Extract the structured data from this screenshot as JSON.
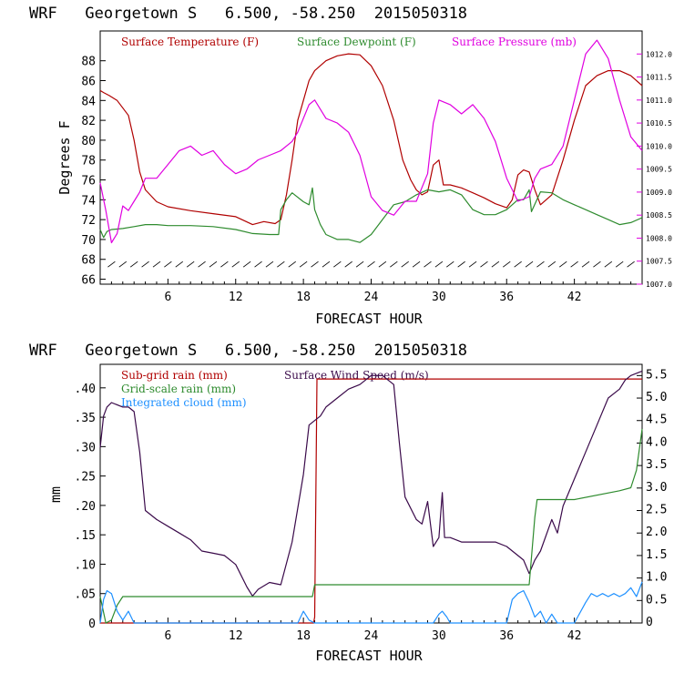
{
  "colors": {
    "temperature": "#b00000",
    "dewpoint": "#2e8b2e",
    "pressure": "#e000e0",
    "subgrid_rain": "#b00000",
    "gridscale_rain": "#2e8b2e",
    "cloud": "#1e90ff",
    "wind_speed": "#3a0a4a",
    "wind_barbs": "#000000"
  },
  "chart_data": [
    {
      "type": "line",
      "title": "WRF   Georgetown S   6.500, -58.250  2015050318",
      "xlabel": "FORECAST HOUR",
      "ylabel": "Degrees F",
      "xlim": [
        0,
        48
      ],
      "ylim": [
        65.5,
        91
      ],
      "y2lim": [
        1007.0,
        1012.5
      ],
      "x_ticks": [
        6,
        12,
        18,
        24,
        30,
        36,
        42
      ],
      "x_tick_labels": [
        "6",
        "12",
        "18",
        "24",
        "30",
        "36",
        "42"
      ],
      "y_ticks": [
        66,
        68,
        70,
        72,
        74,
        76,
        78,
        80,
        82,
        84,
        86,
        88
      ],
      "y_tick_labels": [
        "66",
        "68",
        "70",
        "72",
        "74",
        "76",
        "78",
        "80",
        "82",
        "84",
        "86",
        "88"
      ],
      "y2_ticks": [
        1007.0,
        1007.5,
        1008.0,
        1008.5,
        1009.0,
        1009.5,
        1010.0,
        1010.5,
        1011.0,
        1011.5,
        1012.0
      ],
      "y2_tick_labels": [
        "1007.0",
        "1007.5",
        "1008.0",
        "1008.5",
        "1009.0",
        "1009.5",
        "1010.0",
        "1010.5",
        "1011.0",
        "1011.5",
        "1012.0"
      ],
      "legend": [
        "Surface Temperature (F)",
        "Surface Dewpoint (F)",
        "Surface Pressure (mb)"
      ],
      "wind_barbs_y": 67.5,
      "series": [
        {
          "name": "Surface Temperature (F)",
          "axis": "left",
          "color_key": "temperature",
          "x": [
            0,
            0.3,
            0.8,
            1.5,
            2.5,
            3.0,
            3.5,
            4.0,
            5.0,
            6.0,
            8.0,
            10.0,
            12.0,
            13.5,
            14.5,
            15.5,
            16.0,
            16.5,
            17.0,
            17.5,
            18.0,
            18.5,
            19.0,
            20.0,
            21.0,
            22.0,
            23.0,
            24.0,
            25.0,
            26.0,
            26.8,
            27.5,
            28.0,
            28.5,
            29.0,
            29.5,
            30.0,
            30.4,
            31.0,
            32.0,
            33.0,
            34.0,
            35.0,
            36.0,
            36.5,
            37.0,
            37.5,
            38.0,
            38.5,
            39.0,
            40.0,
            41.0,
            42.0,
            43.0,
            44.0,
            45.0,
            46.0,
            47.0,
            48.0
          ],
          "y": [
            85,
            84.8,
            84.5,
            84.0,
            82.5,
            80.0,
            76.8,
            75.0,
            73.8,
            73.3,
            72.9,
            72.6,
            72.3,
            71.5,
            71.8,
            71.6,
            72.0,
            74.5,
            78.0,
            82.0,
            84.0,
            86.0,
            87.0,
            88.0,
            88.5,
            88.7,
            88.6,
            87.5,
            85.5,
            82.0,
            78.0,
            76.0,
            75.0,
            74.5,
            74.8,
            77.5,
            78.0,
            75.5,
            75.5,
            75.2,
            74.7,
            74.2,
            73.6,
            73.2,
            74.0,
            76.5,
            77.0,
            76.8,
            75.0,
            73.5,
            74.5,
            78.0,
            82.0,
            85.5,
            86.5,
            87.0,
            87.0,
            86.5,
            85.5
          ]
        },
        {
          "name": "Surface Dewpoint (F)",
          "axis": "left",
          "color_key": "dewpoint",
          "x": [
            0,
            0.3,
            0.6,
            1.0,
            2.0,
            3.0,
            4.0,
            5.0,
            6.0,
            8.0,
            10.0,
            12.0,
            13.5,
            15.0,
            15.8,
            16.0,
            16.5,
            17.0,
            18.0,
            18.5,
            18.8,
            19.0,
            19.5,
            20.0,
            21.0,
            22.0,
            23.0,
            24.0,
            25.0,
            26.0,
            27.0,
            28.0,
            29.0,
            30.0,
            31.0,
            32.0,
            33.0,
            34.0,
            35.0,
            36.0,
            37.0,
            37.5,
            38.0,
            38.2,
            39.0,
            40.0,
            41.0,
            42.0,
            43.0,
            44.0,
            45.0,
            46.0,
            47.0,
            48.0
          ],
          "y": [
            71.0,
            70.2,
            70.8,
            71.0,
            71.1,
            71.3,
            71.5,
            71.5,
            71.4,
            71.4,
            71.3,
            71.0,
            70.6,
            70.5,
            70.5,
            73.0,
            74.0,
            74.7,
            73.8,
            73.5,
            75.2,
            73.0,
            71.5,
            70.5,
            70.0,
            70.0,
            69.7,
            70.5,
            72.0,
            73.5,
            73.8,
            74.5,
            75.0,
            74.8,
            75.0,
            74.5,
            73.0,
            72.5,
            72.5,
            73.0,
            74.0,
            74.0,
            75.0,
            72.8,
            74.8,
            74.7,
            74.0,
            73.5,
            73.0,
            72.5,
            72.0,
            71.5,
            71.7,
            72.2
          ]
        },
        {
          "name": "Surface Pressure (mb)",
          "axis": "right",
          "color_key": "pressure",
          "x": [
            0,
            0.5,
            1.0,
            1.5,
            2.0,
            2.5,
            3.0,
            3.5,
            4.0,
            5.0,
            6.0,
            7.0,
            8.0,
            9.0,
            10.0,
            11.0,
            12.0,
            13.0,
            14.0,
            15.0,
            16.0,
            17.0,
            17.5,
            18.0,
            18.5,
            19.0,
            19.5,
            20.0,
            21.0,
            22.0,
            23.0,
            24.0,
            25.0,
            26.0,
            27.0,
            28.0,
            29.0,
            29.5,
            30.0,
            31.0,
            32.0,
            33.0,
            34.0,
            35.0,
            36.0,
            37.0,
            38.0,
            38.5,
            39.0,
            40.0,
            41.0,
            42.0,
            43.0,
            44.0,
            45.0,
            46.0,
            47.0,
            48.0
          ],
          "y": [
            1009.2,
            1008.6,
            1007.9,
            1008.1,
            1008.7,
            1008.6,
            1008.8,
            1009.0,
            1009.3,
            1009.3,
            1009.6,
            1009.9,
            1010.0,
            1009.8,
            1009.9,
            1009.6,
            1009.4,
            1009.5,
            1009.7,
            1009.8,
            1009.9,
            1010.1,
            1010.3,
            1010.6,
            1010.9,
            1011.0,
            1010.8,
            1010.6,
            1010.5,
            1010.3,
            1009.8,
            1008.9,
            1008.6,
            1008.5,
            1008.8,
            1008.8,
            1009.4,
            1010.5,
            1011.0,
            1010.9,
            1010.7,
            1010.9,
            1010.6,
            1010.1,
            1009.3,
            1008.8,
            1008.9,
            1009.3,
            1009.5,
            1009.6,
            1010.0,
            1011.0,
            1012.0,
            1012.3,
            1011.9,
            1011.0,
            1010.2,
            1009.9
          ]
        }
      ]
    },
    {
      "type": "line",
      "title": "WRF   Georgetown S   6.500, -58.250  2015050318",
      "xlabel": "FORECAST HOUR",
      "ylabel": "mm",
      "xlim": [
        0,
        48
      ],
      "ylim": [
        0,
        0.44
      ],
      "y2lim": [
        0,
        5.75
      ],
      "x_ticks": [
        6,
        12,
        18,
        24,
        30,
        36,
        42
      ],
      "x_tick_labels": [
        "6",
        "12",
        "18",
        "24",
        "30",
        "36",
        "42"
      ],
      "y_ticks": [
        0,
        0.05,
        0.1,
        0.15,
        0.2,
        0.25,
        0.3,
        0.35,
        0.4
      ],
      "y_tick_labels": [
        "0",
        ".05",
        ".10",
        ".15",
        ".20",
        ".25",
        ".30",
        ".35",
        ".40"
      ],
      "y2_ticks": [
        0,
        0.5,
        1.0,
        1.5,
        2.0,
        2.5,
        3.0,
        3.5,
        4.0,
        4.5,
        5.0,
        5.5
      ],
      "y2_tick_labels": [
        "0",
        "0.5",
        "1.0",
        "1.5",
        "2.0",
        "2.5",
        "3.0",
        "3.5",
        "4.0",
        "4.5",
        "5.0",
        "5.5"
      ],
      "legend": [
        "Sub-grid rain (mm)",
        "Surface Wind Speed (m/s)",
        "Grid-scale rain (mm)",
        "Integrated cloud (mm)"
      ],
      "series": [
        {
          "name": "Sub-grid rain (mm)",
          "axis": "left",
          "color_key": "subgrid_rain",
          "x": [
            0,
            18.9,
            19.0,
            19.2,
            48
          ],
          "y": [
            0,
            0,
            0.01,
            0.415,
            0.415
          ]
        },
        {
          "name": "Surface Wind Speed (m/s)",
          "axis": "right",
          "color_key": "wind_speed",
          "x": [
            0,
            0.3,
            0.6,
            1.0,
            2.0,
            2.5,
            3.0,
            3.5,
            4.0,
            5.0,
            6.0,
            7.0,
            8.0,
            9.0,
            10.0,
            11.0,
            12.0,
            13.0,
            13.5,
            14.0,
            15.0,
            16.0,
            17.0,
            18.0,
            18.5,
            19.0,
            19.5,
            20.0,
            21.0,
            22.0,
            23.0,
            24.0,
            25.0,
            26.0,
            26.5,
            27.0,
            28.0,
            28.5,
            29.0,
            29.5,
            30.0,
            30.3,
            30.5,
            31.0,
            32.0,
            33.0,
            34.0,
            35.0,
            36.0,
            37.0,
            37.5,
            38.0,
            38.5,
            39.0,
            40.0,
            40.5,
            41.0,
            42.0,
            43.0,
            44.0,
            45.0,
            46.0,
            46.5,
            47.0,
            48.0
          ],
          "y": [
            3.9,
            4.6,
            4.8,
            4.9,
            4.8,
            4.8,
            4.7,
            3.8,
            2.5,
            2.3,
            2.15,
            2.0,
            1.85,
            1.6,
            1.55,
            1.5,
            1.3,
            0.8,
            0.6,
            0.75,
            0.9,
            0.85,
            1.8,
            3.3,
            4.4,
            4.5,
            4.6,
            4.8,
            5.0,
            5.2,
            5.3,
            5.5,
            5.5,
            5.3,
            4.0,
            2.8,
            2.3,
            2.2,
            2.7,
            1.7,
            1.9,
            2.9,
            1.9,
            1.9,
            1.8,
            1.8,
            1.8,
            1.8,
            1.7,
            1.5,
            1.4,
            1.1,
            1.4,
            1.6,
            2.3,
            2.0,
            2.6,
            3.2,
            3.8,
            4.4,
            5.0,
            5.2,
            5.4,
            5.5,
            5.6
          ]
        },
        {
          "name": "Grid-scale rain (mm)",
          "axis": "left",
          "color_key": "gridscale_rain",
          "x": [
            0,
            0.5,
            1.0,
            1.5,
            2.0,
            18.8,
            19.0,
            37.8,
            38.0,
            38.5,
            38.7,
            42.0,
            46.0,
            47.0,
            47.5,
            48.0
          ],
          "y": [
            0.045,
            0.0,
            0.005,
            0.03,
            0.045,
            0.045,
            0.065,
            0.065,
            0.065,
            0.18,
            0.21,
            0.21,
            0.225,
            0.23,
            0.26,
            0.33
          ]
        },
        {
          "name": "Integrated cloud (mm)",
          "axis": "left",
          "color_key": "cloud",
          "x": [
            0,
            0.3,
            0.6,
            1.0,
            1.5,
            2.0,
            2.5,
            3.0,
            17.5,
            18.0,
            18.5,
            19.0,
            29.5,
            30.0,
            30.3,
            30.7,
            31.0,
            36.0,
            36.5,
            37.0,
            37.5,
            38.0,
            38.5,
            39.0,
            39.5,
            40.0,
            40.5,
            41.0,
            41.5,
            42.0,
            43.0,
            43.5,
            44.0,
            44.5,
            45.0,
            45.5,
            46.0,
            46.5,
            47.0,
            47.5,
            48.0
          ],
          "y": [
            0,
            0.04,
            0.055,
            0.05,
            0.02,
            0.005,
            0.02,
            0,
            0,
            0.02,
            0.005,
            0,
            0,
            0.015,
            0.02,
            0.01,
            0,
            0,
            0.04,
            0.05,
            0.055,
            0.035,
            0.01,
            0.02,
            0,
            0.015,
            0,
            0,
            0,
            0,
            0.035,
            0.05,
            0.045,
            0.05,
            0.045,
            0.05,
            0.045,
            0.05,
            0.06,
            0.045,
            0.07
          ]
        }
      ]
    }
  ]
}
